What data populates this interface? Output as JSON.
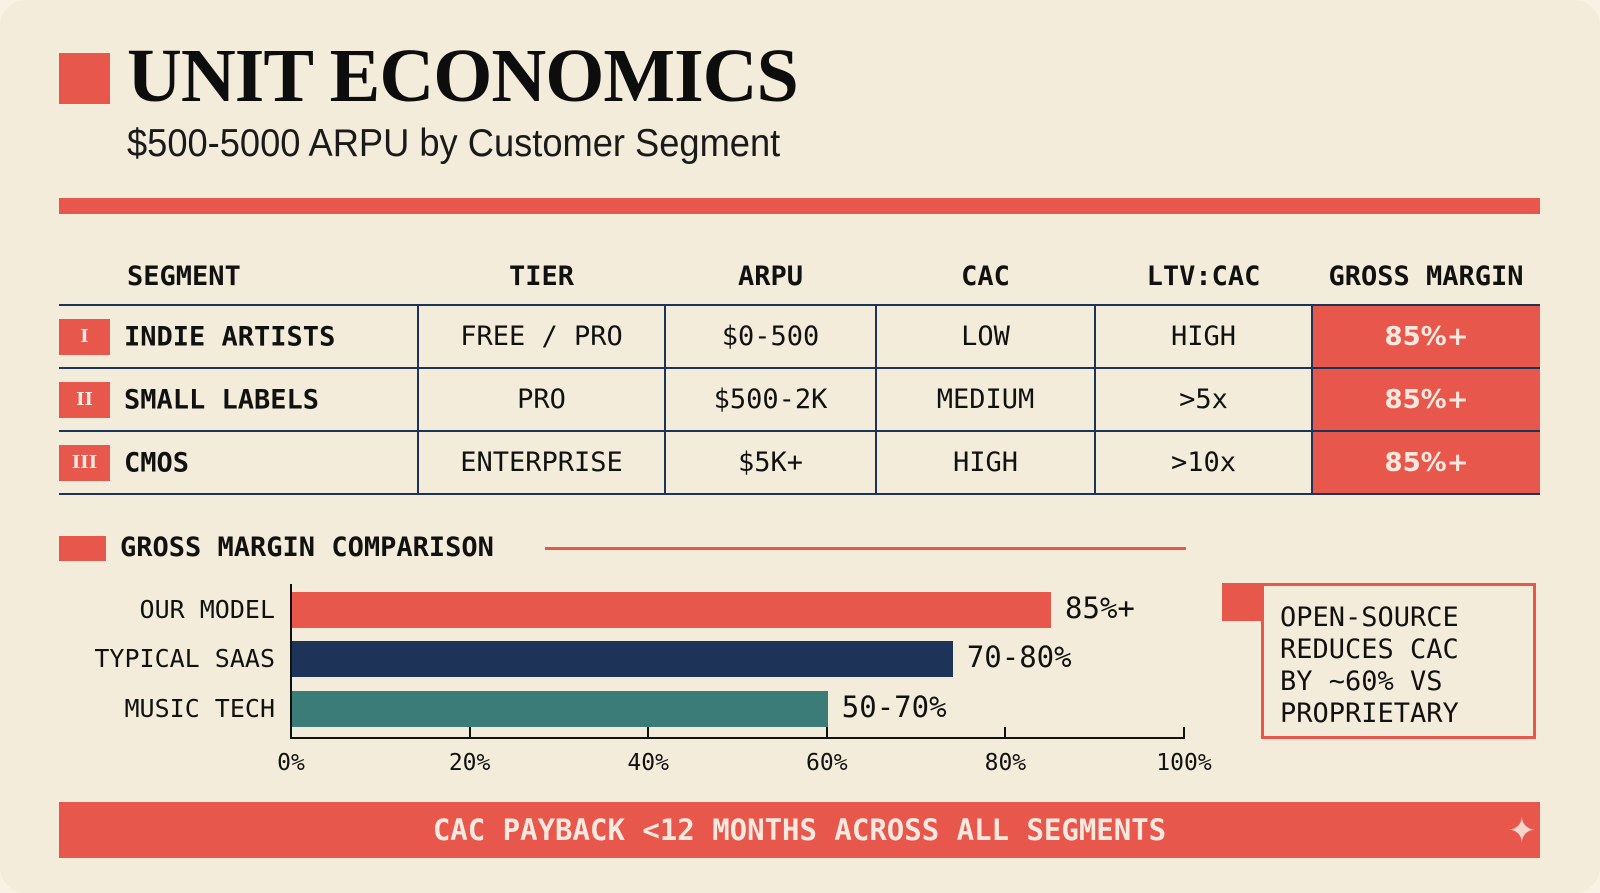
{
  "header": {
    "title": "UNIT ECONOMICS",
    "subtitle": "$500-5000 ARPU by Customer Segment"
  },
  "table": {
    "columns": [
      "SEGMENT",
      "TIER",
      "ARPU",
      "CAC",
      "LTV:CAC",
      "GROSS MARGIN"
    ],
    "rows": [
      {
        "num": "I",
        "segment": "INDIE ARTISTS",
        "tier": "FREE / PRO",
        "arpu": "$0-500",
        "cac": "LOW",
        "ltv_cac": "HIGH",
        "gross_margin": "85%+"
      },
      {
        "num": "II",
        "segment": "SMALL LABELS",
        "tier": "PRO",
        "arpu": "$500-2K",
        "cac": "MEDIUM",
        "ltv_cac": ">5x",
        "gross_margin": "85%+"
      },
      {
        "num": "III",
        "segment": "CMOS",
        "tier": "ENTERPRISE",
        "arpu": "$5K+",
        "cac": "HIGH",
        "ltv_cac": ">10x",
        "gross_margin": "85%+"
      }
    ]
  },
  "chart_data": {
    "type": "bar",
    "orientation": "horizontal",
    "title": "GROSS MARGIN COMPARISON",
    "categories": [
      "OUR MODEL",
      "TYPICAL SAAS",
      "MUSIC TECH"
    ],
    "values": [
      85,
      74,
      60
    ],
    "data_labels": [
      "85%+",
      "70-80%",
      "50-70%"
    ],
    "colors": [
      "#e8574c",
      "#1e3358",
      "#3b7c78"
    ],
    "xlim": [
      0,
      100
    ],
    "xticks": [
      "0%",
      "20%",
      "40%",
      "60%",
      "80%",
      "100%"
    ],
    "grid": false
  },
  "note": {
    "lines": [
      "OPEN-SOURCE",
      "REDUCES CAC",
      "BY ~60% VS",
      "PROPRIETARY"
    ]
  },
  "footer": {
    "text": "CAC PAYBACK <12 MONTHS ACROSS ALL SEGMENTS"
  },
  "colors": {
    "accent": "#e8574c",
    "navy": "#1e3358",
    "teal": "#3b7c78",
    "background": "#f3ecda"
  }
}
